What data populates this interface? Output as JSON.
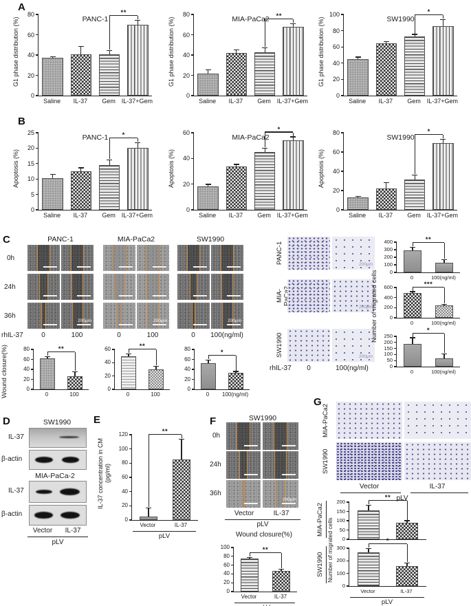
{
  "panels": {
    "a": "A",
    "b": "B",
    "c": "C",
    "d": "D",
    "e": "E",
    "f": "F",
    "g": "G"
  },
  "labels": {
    "scale": "200μm"
  },
  "panel_c": {
    "wound": {
      "titles": [
        "PANC-1",
        "MIA-PaCa2",
        "SW1990"
      ],
      "rows": [
        "0h",
        "24h",
        "36h"
      ],
      "treat": "rhIL-37",
      "doses": [
        "0",
        "100",
        "0",
        "100",
        "0",
        "100(ng/ml)"
      ],
      "ylabel": "Wound closure(%)"
    },
    "mig": {
      "rows": [
        "PANC-1",
        "MIA-PaCa2",
        "SW1990"
      ],
      "treat": "rhIL-37",
      "dose0": "0",
      "dose100": "100(ng/ml)",
      "ylabel": "Number of migrated cells"
    }
  },
  "panel_d": {
    "title1": "SW1990",
    "title2": "MIA-PaCa-2",
    "row1": "IL-37",
    "actin": "β-actin",
    "lane1": "Vector",
    "lane2": "IL-37",
    "group": "pLV"
  },
  "panel_f": {
    "title": "SW1990",
    "rows": [
      "0h",
      "24h",
      "36h"
    ],
    "lane1": "Vector",
    "lane2": "IL-37",
    "group": "pLV",
    "chart_title": "Wound closure(%)"
  },
  "panel_g": {
    "side1": "MIA-PaCa2",
    "side2": "SW1990",
    "lane1": "Vector",
    "lane2": "IL-37",
    "group": "pLV",
    "ylabel": "Number of migrated cells"
  },
  "chart_data": [
    {
      "id": "a_panc1",
      "type": "bar",
      "title": "PANC-1",
      "ylabel": "G1 phase distribution (%)",
      "ylim": [
        0,
        80
      ],
      "yticks": [
        0,
        20,
        40,
        60,
        80
      ],
      "categories": [
        "Saline",
        "IL-37",
        "Gem",
        "IL-37+Gem"
      ],
      "values": [
        37,
        41,
        41,
        70
      ],
      "errors": [
        1,
        7,
        3,
        4
      ],
      "patterns": [
        "stipple",
        "check",
        "hlines",
        "vlines"
      ],
      "sig": {
        "a": 2,
        "b": 3,
        "label": "**"
      }
    },
    {
      "id": "a_mia",
      "type": "bar",
      "title": "MIA-PaCa2",
      "ylabel": "G1 phase distribution (%)",
      "ylim": [
        0,
        80
      ],
      "yticks": [
        0,
        20,
        40,
        60,
        80
      ],
      "categories": [
        "Saline",
        "IL-37",
        "Gem",
        "IL-37+Gem"
      ],
      "values": [
        22,
        42,
        43,
        68
      ],
      "errors": [
        3,
        2.5,
        4,
        2.5
      ],
      "patterns": [
        "stipple",
        "check",
        "hlines",
        "vlines"
      ],
      "sig": {
        "a": 2,
        "b": 3,
        "label": "**"
      }
    },
    {
      "id": "a_sw",
      "type": "bar",
      "title": "SW1990",
      "ylabel": "G1 phase distribution (%)",
      "ylim": [
        0,
        100
      ],
      "yticks": [
        0,
        20,
        40,
        60,
        80,
        100
      ],
      "categories": [
        "Saline",
        "IL-37",
        "Gem",
        "IL-37+Gem"
      ],
      "values": [
        45,
        64,
        73,
        86
      ],
      "errors": [
        2,
        2,
        2,
        7
      ],
      "patterns": [
        "stipple",
        "check",
        "hlines",
        "vlines"
      ],
      "sig": {
        "a": 2,
        "b": 3,
        "label": "*"
      }
    },
    {
      "id": "b_panc1",
      "type": "bar",
      "title": "PANC-1",
      "ylabel": "Apoptosis (%)",
      "ylim": [
        0,
        25
      ],
      "yticks": [
        0,
        5,
        10,
        15,
        20,
        25
      ],
      "categories": [
        "Saline",
        "IL-37",
        "Gem",
        "IL-37+Gem"
      ],
      "values": [
        10.3,
        12.5,
        14.5,
        20
      ],
      "errors": [
        1,
        1,
        1.5,
        1.7
      ],
      "patterns": [
        "stipple",
        "check",
        "hlines",
        "vlines"
      ],
      "sig": {
        "a": 2,
        "b": 3,
        "label": "*"
      }
    },
    {
      "id": "b_mia",
      "type": "bar",
      "title": "MIA-PaCa2",
      "ylabel": "Apoptosis (%)",
      "ylim": [
        0,
        60
      ],
      "yticks": [
        0,
        20,
        40,
        60
      ],
      "categories": [
        "Saline",
        "IL-37",
        "Gem",
        "IL-37+Gem"
      ],
      "values": [
        18,
        33.5,
        45,
        54
      ],
      "errors": [
        1.5,
        1.5,
        2.5,
        2.5
      ],
      "patterns": [
        "stipple",
        "check",
        "hlines",
        "vlines"
      ],
      "sig": {
        "a": 2,
        "b": 3,
        "label": "*"
      }
    },
    {
      "id": "b_sw",
      "type": "bar",
      "title": "SW1990",
      "ylabel": "Apoptosis (%)",
      "ylim": [
        0,
        80
      ],
      "yticks": [
        0,
        20,
        40,
        60,
        80
      ],
      "categories": [
        "Saline",
        "IL-37",
        "Gem",
        "IL-37+Gem"
      ],
      "values": [
        13,
        22.5,
        31.5,
        69
      ],
      "errors": [
        0.5,
        5.5,
        4,
        4
      ],
      "patterns": [
        "stipple",
        "check",
        "hlines",
        "vlines"
      ],
      "sig": {
        "a": 2,
        "b": 3,
        "label": "*"
      }
    },
    {
      "id": "c_wound_panc1",
      "type": "bar",
      "ylim": [
        0,
        80
      ],
      "yticks": [
        0,
        20,
        40,
        60,
        80
      ],
      "categories": [
        "0",
        "100"
      ],
      "values": [
        62,
        26
      ],
      "errors": [
        3,
        8
      ],
      "patterns": [
        "stipple",
        "check"
      ],
      "sig": {
        "a": 0,
        "b": 1,
        "label": "**"
      }
    },
    {
      "id": "c_wound_mia",
      "type": "bar",
      "ylim": [
        0,
        60
      ],
      "yticks": [
        0,
        20,
        40,
        60
      ],
      "categories": [
        "0",
        "100"
      ],
      "values": [
        50,
        30
      ],
      "errors": [
        3,
        4
      ],
      "patterns": [
        "hlines-lt",
        "check-lt"
      ],
      "sig": {
        "a": 0,
        "b": 1,
        "label": "**"
      }
    },
    {
      "id": "c_wound_sw",
      "type": "bar",
      "ylim": [
        0,
        80
      ],
      "yticks": [
        0,
        20,
        40,
        60,
        80
      ],
      "categories": [
        "0",
        "100(ng/ml)"
      ],
      "values": [
        53,
        33
      ],
      "errors": [
        5,
        2
      ],
      "patterns": [
        "solid",
        "check"
      ],
      "sig": {
        "a": 0,
        "b": 1,
        "label": "*"
      }
    },
    {
      "id": "c_mig_panc1",
      "type": "bar",
      "ylim": [
        0,
        400
      ],
      "yticks": [
        0,
        100,
        200,
        300,
        400
      ],
      "categories": [
        "0",
        "100(ng/ml)"
      ],
      "values": [
        290,
        130
      ],
      "errors": [
        40,
        30
      ],
      "patterns": [
        "solid",
        "solid"
      ],
      "sig": {
        "a": 0,
        "b": 1,
        "label": "**"
      }
    },
    {
      "id": "c_mig_mia",
      "type": "bar",
      "ylim": [
        0,
        600
      ],
      "yticks": [
        0,
        200,
        400,
        600
      ],
      "categories": [
        "0",
        "100(ng/ml)"
      ],
      "values": [
        490,
        240
      ],
      "errors": [
        20,
        20
      ],
      "patterns": [
        "check",
        "check-lt"
      ],
      "sig": {
        "a": 0,
        "b": 1,
        "label": "***"
      }
    },
    {
      "id": "c_mig_sw",
      "type": "bar",
      "ylim": [
        0,
        250
      ],
      "yticks": [
        0,
        50,
        100,
        150,
        200,
        250
      ],
      "categories": [
        "0",
        "100(ng/ml)"
      ],
      "values": [
        190,
        70
      ],
      "errors": [
        45,
        30
      ],
      "patterns": [
        "solid",
        "solid"
      ],
      "sig": {
        "a": 0,
        "b": 1,
        "label": "*"
      }
    },
    {
      "id": "e_conc",
      "type": "bar",
      "ylabel": "IL-37 concentration in CM\n(pg/ml)",
      "ylim": [
        0,
        120
      ],
      "yticks": [
        0,
        20,
        40,
        60,
        80,
        100,
        120
      ],
      "categories": [
        "Vector",
        "IL-37"
      ],
      "values": [
        5,
        85
      ],
      "errors": [
        11,
        28
      ],
      "patterns": [
        "solid",
        "check"
      ],
      "sig": {
        "a": 0,
        "b": 1,
        "label": "**"
      },
      "xunderline": "pLV"
    },
    {
      "id": "f_wound",
      "type": "bar",
      "ylim": [
        0,
        100
      ],
      "yticks": [
        0,
        20,
        40,
        60,
        80,
        100
      ],
      "categories": [
        "Vector",
        "IL-37"
      ],
      "values": [
        75,
        47
      ],
      "errors": [
        2,
        3
      ],
      "patterns": [
        "hlines",
        "check"
      ],
      "sig": {
        "a": 0,
        "b": 1,
        "label": "**"
      },
      "xunderline": "pLV"
    },
    {
      "id": "g_mig_mia",
      "type": "bar",
      "ylim": [
        0,
        200
      ],
      "yticks": [
        0,
        50,
        100,
        150,
        200
      ],
      "categories": [
        "Vector",
        "IL-37"
      ],
      "values": [
        155,
        88
      ],
      "errors": [
        25,
        10
      ],
      "patterns": [
        "hlines",
        "check"
      ],
      "sig": {
        "a": 0,
        "b": 1,
        "label": "**"
      },
      "show_xlabels": false
    },
    {
      "id": "g_mig_sw",
      "type": "bar",
      "ylim": [
        0,
        300
      ],
      "yticks": [
        0,
        100,
        200,
        300
      ],
      "categories": [
        "Vector",
        "IL-37"
      ],
      "values": [
        270,
        160
      ],
      "errors": [
        25,
        20
      ],
      "patterns": [
        "hlines",
        "check"
      ],
      "sig": {
        "a": 0,
        "b": 1,
        "label": "*"
      },
      "xunderline": "pLV"
    }
  ]
}
